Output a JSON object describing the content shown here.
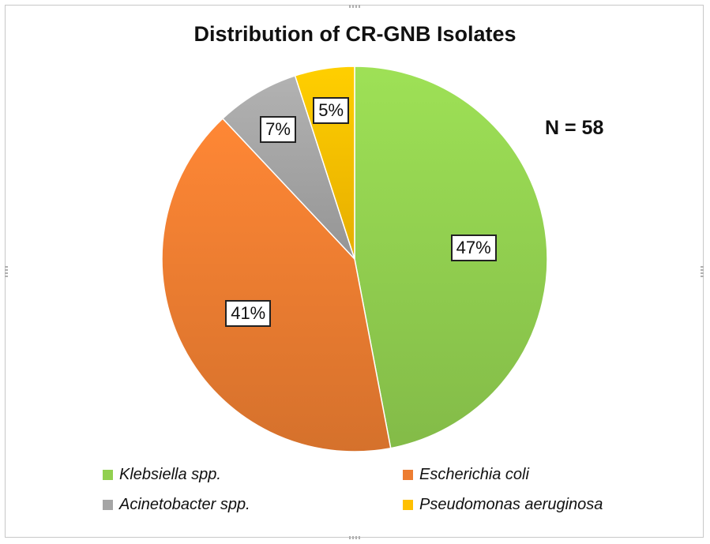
{
  "chart_data": {
    "type": "pie",
    "title": "Distribution of CR-GNB Isolates",
    "annotation": "N = 58",
    "slices": [
      {
        "name": "Klebsiella spp.",
        "value": 47,
        "label": "47%",
        "color": "#92d050"
      },
      {
        "name": "Escherichia coli",
        "value": 41,
        "label": "41%",
        "color": "#ed7d31"
      },
      {
        "name": "Acinetobacter spp.",
        "value": 7,
        "label": "7%",
        "color": "#a5a5a5"
      },
      {
        "name": "Pseudomonas aeruginosa",
        "value": 5,
        "label": "5%",
        "color": "#ffc000"
      }
    ],
    "legend_position": "bottom"
  }
}
